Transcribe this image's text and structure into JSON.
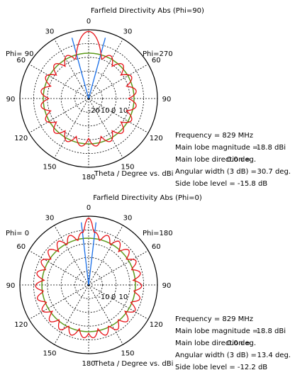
{
  "chart_data": [
    {
      "type": "polar",
      "title": "Farfield Directivity Abs (Phi=90)",
      "phi_left_label": "Phi= 90",
      "phi_right_label": "Phi=270",
      "angle_ticks": [
        "0",
        "30",
        "60",
        "90",
        "120",
        "150",
        "180",
        "150",
        "120",
        "90",
        "60",
        "30"
      ],
      "radial_ticks": [
        "-20",
        "-10",
        "0",
        "10"
      ],
      "axis_caption": "Theta / Degree vs. dBi",
      "r_range_dBi": [
        -30,
        20
      ],
      "grid": true,
      "info": [
        {
          "label": "Frequency = 829 MHz",
          "value": ""
        },
        {
          "label": "Main lobe magnitude =",
          "value": "18.8 dBi"
        },
        {
          "label": "Main lobe direction =",
          "value": "0.0 deg."
        },
        {
          "label": "Angular width (3 dB) =",
          "value": "30.7 deg."
        },
        {
          "label": "Side lobe level = -15.8 dB",
          "value": ""
        }
      ],
      "main_lobe_dBi": 18.8,
      "main_lobe_direction_deg": 0,
      "angular_width_3dB_deg": 30.7,
      "side_lobe_level_dB": -15.8,
      "reference_level_dBi": 3,
      "side_level_dBi": 3,
      "colors": {
        "pattern": "#e8141a",
        "beamwidth": "#1a6fe8",
        "reference": "#5c9a1a"
      }
    },
    {
      "type": "polar",
      "title": "Farfield Directivity Abs (Phi=0)",
      "phi_left_label": "Phi= 0",
      "phi_right_label": "Phi=180",
      "angle_ticks": [
        "0",
        "30",
        "60",
        "90",
        "120",
        "150",
        "180",
        "150",
        "120",
        "90",
        "60",
        "30"
      ],
      "radial_ticks": [
        "-10",
        "0",
        "10"
      ],
      "axis_caption": "Theta / Degree vs. dBi",
      "r_range_dBi": [
        -30,
        20
      ],
      "grid": true,
      "info": [
        {
          "label": "Frequency = 829 MHz",
          "value": ""
        },
        {
          "label": "Main lobe magnitude =",
          "value": "18.8 dBi"
        },
        {
          "label": "Main lobe direction =",
          "value": "0.0 deg."
        },
        {
          "label": "Angular width (3 dB) =",
          "value": "13.4 deg."
        },
        {
          "label": "Side lobe level = -12.2 dB",
          "value": ""
        }
      ],
      "main_lobe_dBi": 18.8,
      "main_lobe_direction_deg": 0,
      "angular_width_3dB_deg": 13.4,
      "side_lobe_level_dB": -12.2,
      "reference_level_dBi": 4,
      "side_level_dBi": 6.6,
      "colors": {
        "pattern": "#e8141a",
        "beamwidth": "#1a6fe8",
        "reference": "#5c9a1a"
      }
    }
  ]
}
